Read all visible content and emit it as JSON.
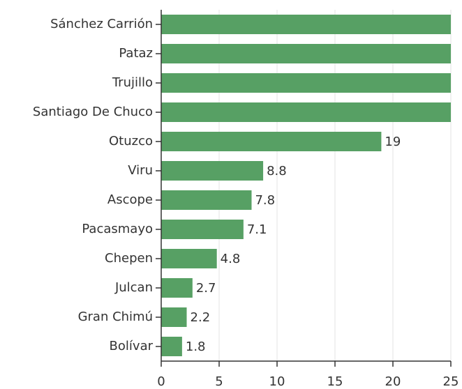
{
  "chart_data": {
    "type": "bar",
    "orientation": "horizontal",
    "categories": [
      "Sánchez Carrión",
      "Pataz",
      "Trujillo",
      "Santiago De Chuco",
      "Otuzco",
      "Viru",
      "Ascope",
      "Pacasmayo",
      "Chepen",
      "Julcan",
      "Gran Chimú",
      "Bolívar"
    ],
    "values": [
      25,
      25,
      25,
      25,
      19,
      8.8,
      7.8,
      7.1,
      4.8,
      2.7,
      2.2,
      1.8
    ],
    "color": "#57a064",
    "xlim": [
      0,
      25
    ],
    "xticks": [
      0,
      5,
      10,
      15,
      20,
      25
    ],
    "grid": true
  }
}
